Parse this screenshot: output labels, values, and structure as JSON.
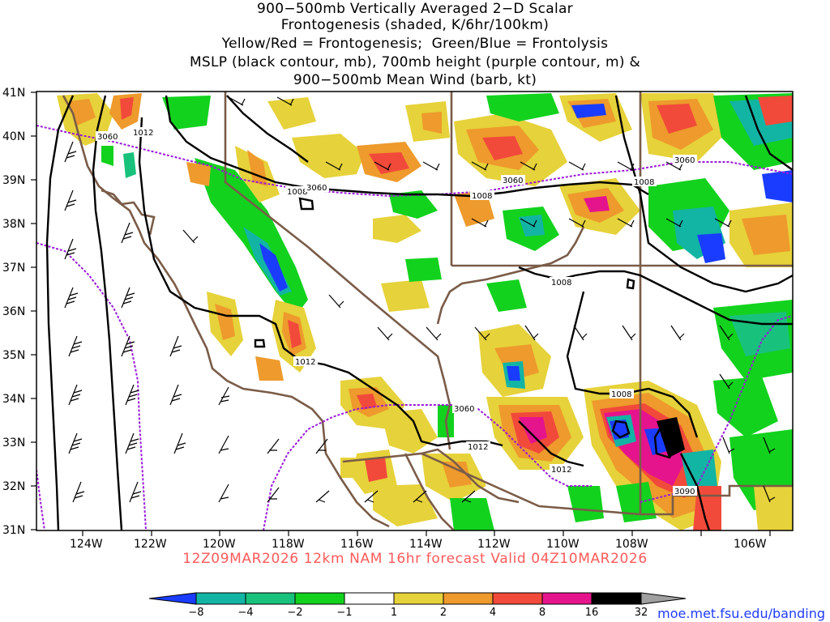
{
  "title_lines": [
    "900−500mb Vertically Averaged 2−D Scalar",
    "Frontogenesis (shaded, K/6hr/100km)",
    "Yellow/Red = Frontogenesis;  Green/Blue = Frontolysis",
    "MSLP (black contour, mb), 700mb height (purple contour, m) &",
    "900−500mb Mean Wind (barb, kt)"
  ],
  "lat_labels": [
    "41N",
    "40N",
    "39N",
    "38N",
    "37N",
    "36N",
    "35N",
    "34N",
    "33N",
    "32N",
    "31N"
  ],
  "lon_labels": [
    "124W",
    "122W",
    "120W",
    "118W",
    "116W",
    "114W",
    "112W",
    "110W",
    "108W",
    "106W"
  ],
  "contour_labels": {
    "mslp": [
      "1012",
      "1008",
      "1008",
      "1008",
      "1008",
      "1012",
      "1008",
      "1012",
      "1012"
    ],
    "height": [
      "3060",
      "3060",
      "3060",
      "3060",
      "3060",
      "3090"
    ]
  },
  "colorbar": {
    "labels": [
      "−8",
      "−4",
      "−2",
      "−1",
      "1",
      "2",
      "4",
      "8",
      "16",
      "32"
    ],
    "colors": [
      "#1a3cff",
      "#12b4a4",
      "#19c27c",
      "#12d21e",
      "#ffffff",
      "#e6d23a",
      "#ee9a2c",
      "#f24a3a",
      "#e6148c",
      "#000000",
      "#a0a0a0"
    ]
  },
  "caption": "12Z09MAR2026 12km NAM 16hr forecast Valid 04Z10MAR2026",
  "url": "moe.met.fsu.edu/banding"
}
